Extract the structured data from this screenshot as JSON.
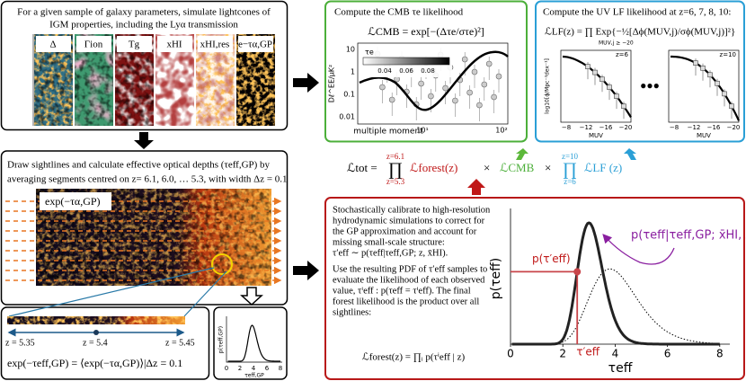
{
  "simulate": {
    "description": [
      "For a given sample of galaxy parameters, simulate lightcones of",
      "IGM properties, including the Lyα transmission"
    ],
    "panels": [
      "Δ",
      "Γion",
      "Tg",
      "xHI",
      "xHI,res",
      "e−τα,GP"
    ]
  },
  "sightlines": {
    "description": [
      "Draw sightlines and calculate effective optical depths (τeff,GP) by",
      "averaging segments centred on z= 6.1, 6.0, … 5.3, with width Δz = 0.1"
    ],
    "image_label": "exp(−τα,GP)"
  },
  "segment": {
    "z_labels": [
      "z = 5.35",
      "z = 5.4",
      "z = 5.45"
    ],
    "formula": "exp(−τeff,GP) = ⟨exp(−τα,GP)⟩|Δz = 0.1"
  },
  "pdf_plot": {
    "y_label": "p(τeff,GP)",
    "x_label": "τeff,GP",
    "xticks": [
      "0",
      "2",
      "4",
      "6",
      "8"
    ]
  },
  "cmb": {
    "title": "Compute the CMB τe likelihood",
    "formula": "ℒCMB = exp[−(Δτe/στe)²]",
    "colorbar_label": "τe",
    "colorbar_ticks": [
      "0.04",
      "0.06",
      "0.08"
    ],
    "y_label": "Dℓ^EE/μK²",
    "yticks": [
      "10",
      "1",
      "0.1",
      "0.01"
    ],
    "x_label": "multiple moment",
    "xticks": [
      "10¹",
      "10²"
    ]
  },
  "uvlf": {
    "title": "Compute the UV LF likelihood at z=6, 7, 8, 10:",
    "formula": "ℒLF(z) = ∏ Exp{−½[Δϕ(MUV,j)/σϕ(MUV,j)]²}",
    "product_index": "MUV,j ≥ −20",
    "panels": [
      "z=6",
      "z=10"
    ],
    "ellipsis": "●●●",
    "y_label": "log10[ϕ/Mpc⁻³dex⁻¹]",
    "x_label": "MUV",
    "xticks": [
      "−8",
      "−12",
      "−16",
      "−20"
    ]
  },
  "total": {
    "lhs": "ℒtot =",
    "product": "∏",
    "forest_upper": "z=6.1",
    "forest_lower": "z=5.3",
    "forest": "ℒforest(z)",
    "times": "×",
    "cmb": "ℒCMB",
    "lf_upper": "z=10",
    "lf_lower": "z=6",
    "lf": "ℒLF (z)"
  },
  "calibration": {
    "paragraph1": [
      "Stochastically calibrate to high-resolution",
      "hydrodynamic simulations to correct for",
      "the GP approximation and account for",
      "missing small-scale structure:",
      "τ′eff ∼ p(τeff|τeff,GP; z, x̄HI)."
    ],
    "paragraph2": [
      "Use the resulting PDF of τ′eff samples to",
      "evaluate the likelihood of each observed",
      "value, τⁱeff : p(τeff = τⁱeff). The final",
      "forest likelihood is the product over all",
      "sightlines:"
    ],
    "formula": "ℒforest(z) = ∏ᵢ p(τⁱeff | z)",
    "y_label": "p(τeff)",
    "x_label": "τeff",
    "xticks": [
      "0",
      "2",
      "4",
      "6",
      "8"
    ],
    "point_label": "p(τ′eff)",
    "tau_label": "τ′eff",
    "pdf_label": "p(τeff|τeff,GP; x̄HI, z)"
  }
}
